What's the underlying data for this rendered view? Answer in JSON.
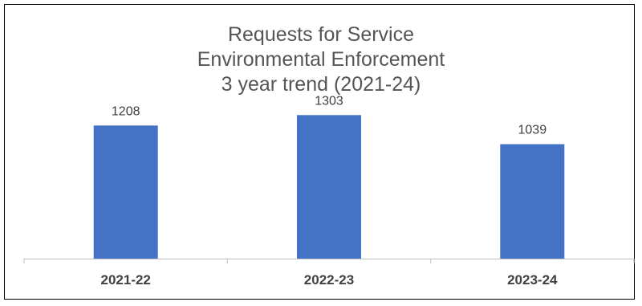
{
  "chart_data": {
    "type": "bar",
    "title_lines": [
      "Requests for Service",
      "Environmental Enforcement",
      "3 year trend (2021-24)"
    ],
    "categories": [
      "2021-22",
      "2022-23",
      "2023-24"
    ],
    "values": [
      1208,
      1303,
      1039
    ],
    "ylim": [
      0,
      1400
    ],
    "grid": false,
    "legend": "none",
    "bar_color": "#4472C4",
    "axis_color": "#BFBFBF"
  }
}
